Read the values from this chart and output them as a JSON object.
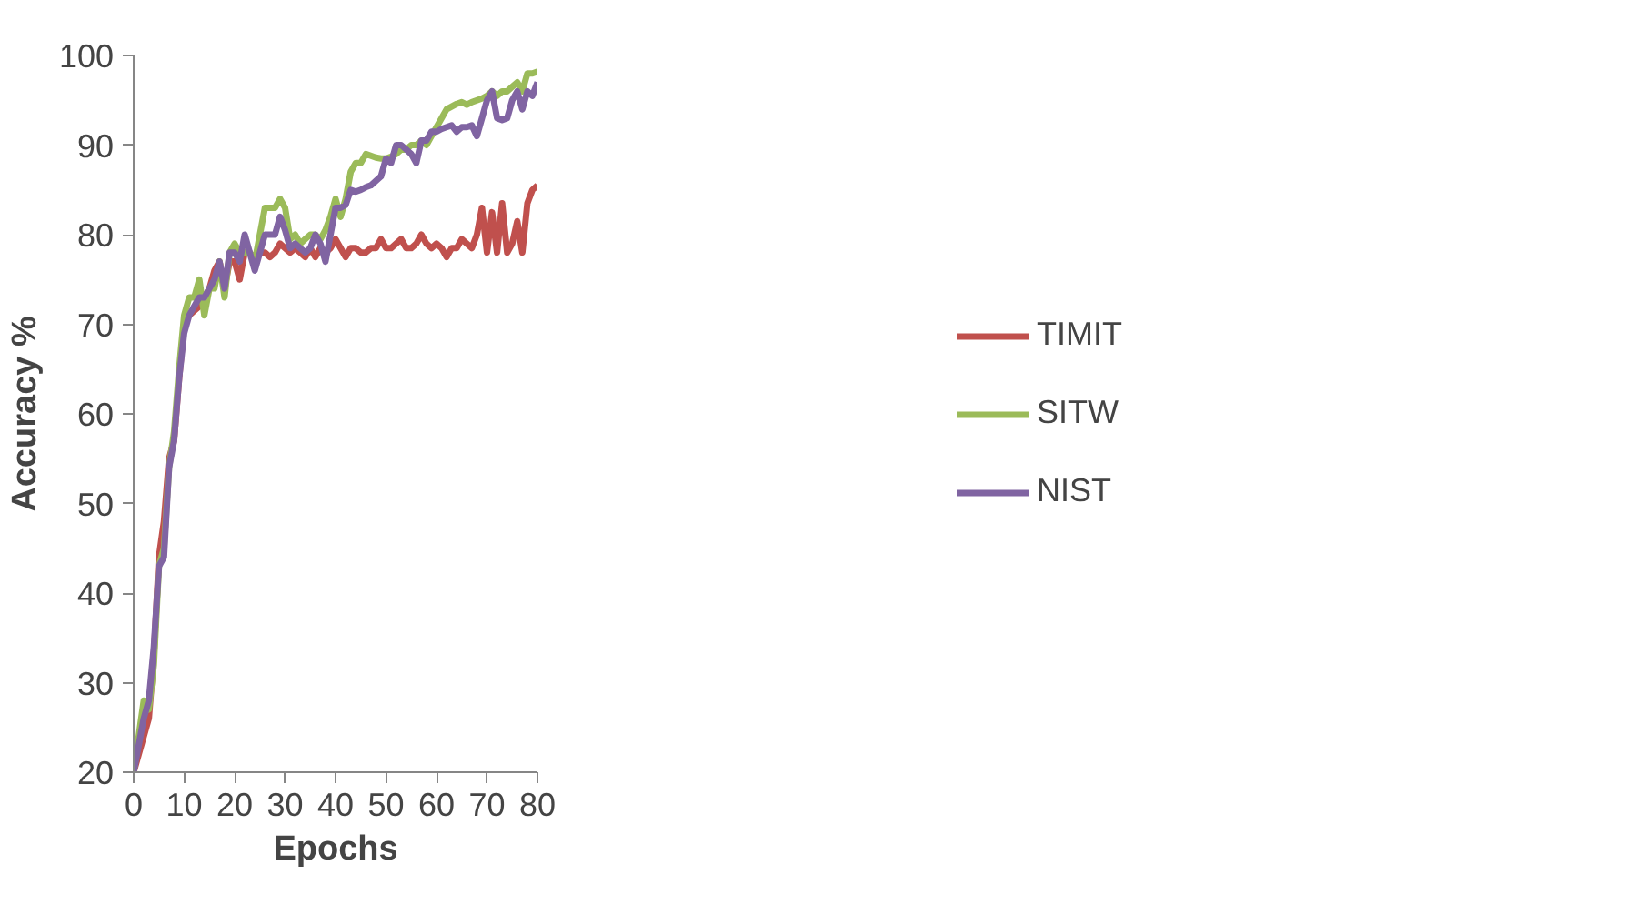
{
  "chart_data": {
    "type": "line",
    "xlabel": "Epochs",
    "ylabel": "Accuracy %",
    "x": [
      0,
      1,
      2,
      3,
      4,
      5,
      6,
      7,
      8,
      9,
      10,
      11,
      12,
      13,
      14,
      15,
      16,
      17,
      18,
      19,
      20,
      21,
      22,
      23,
      24,
      25,
      26,
      27,
      28,
      29,
      30,
      31,
      32,
      33,
      34,
      35,
      36,
      37,
      38,
      39,
      40,
      41,
      42,
      43,
      44,
      45,
      46,
      47,
      48,
      49,
      50,
      51,
      52,
      53,
      54,
      55,
      56,
      57,
      58,
      59,
      60,
      61,
      62,
      63,
      64,
      65,
      66,
      67,
      68,
      69,
      70,
      71,
      72,
      73,
      74,
      75,
      76,
      77,
      78,
      79,
      80
    ],
    "series": [
      {
        "name": "TIMIT",
        "color": "#c0504d",
        "values": [
          20,
          22,
          24,
          26,
          33,
          44,
          48,
          55,
          57,
          64,
          70,
          71,
          71.5,
          72,
          73,
          74,
          76,
          77,
          74,
          77,
          77,
          75,
          78,
          78,
          77,
          78,
          78,
          77.5,
          78,
          79,
          78.5,
          78,
          78.5,
          78,
          77.5,
          78.5,
          77.5,
          78.5,
          78,
          78.5,
          79.5,
          78.5,
          77.5,
          78.5,
          78.5,
          78,
          78,
          78.5,
          78.5,
          79.5,
          78.5,
          78.5,
          79,
          79.5,
          78.5,
          78.5,
          79,
          80,
          79,
          78.5,
          79,
          78.5,
          77.5,
          78.5,
          78.5,
          79.5,
          79,
          78.5,
          80,
          83,
          78,
          82.5,
          78,
          83.5,
          78,
          79,
          81.5,
          78,
          83.5,
          85,
          85.5
        ]
      },
      {
        "name": "SITW",
        "color": "#9bbb59",
        "values": [
          20,
          24,
          28,
          27,
          32,
          43,
          45,
          54,
          58,
          65,
          71,
          73,
          73,
          75,
          71,
          74,
          74,
          77,
          73,
          78,
          79,
          78,
          78,
          78,
          77,
          80,
          83,
          83,
          83,
          84,
          83,
          79.5,
          80,
          79,
          79.5,
          80,
          80,
          79.5,
          80.5,
          82,
          84,
          82,
          84,
          87,
          88,
          88,
          89,
          88.8,
          88.6,
          88.5,
          88.5,
          88.7,
          89,
          89.5,
          89.5,
          90,
          90,
          90.5,
          90,
          91,
          92,
          93,
          94,
          94.3,
          94.6,
          94.8,
          94.5,
          94.8,
          95,
          95.2,
          95.5,
          96,
          95.5,
          96,
          96,
          96.5,
          97,
          96,
          98,
          98,
          98.2
        ]
      },
      {
        "name": "NIST",
        "color": "#8064a2",
        "values": [
          20,
          23,
          26,
          28,
          34,
          43,
          44,
          54,
          57,
          64,
          69,
          71,
          72,
          73,
          73,
          74,
          75,
          77,
          74,
          78,
          78,
          77,
          80,
          78,
          76,
          78,
          80,
          80,
          80,
          82,
          80.5,
          78.5,
          79,
          78.5,
          78,
          78.5,
          80,
          79,
          77,
          80,
          83,
          83,
          83.3,
          85,
          84.8,
          85,
          85.3,
          85.5,
          86,
          86.5,
          88.5,
          88,
          90,
          90,
          89.5,
          89,
          88,
          90.5,
          90.5,
          91.5,
          91.5,
          91.8,
          92,
          92.2,
          91.5,
          92,
          92,
          92.2,
          91,
          93,
          95,
          96,
          93,
          92.8,
          93,
          95,
          96,
          94,
          96,
          95.5,
          97
        ]
      }
    ],
    "xlim": [
      0,
      80
    ],
    "xticks": [
      0,
      10,
      20,
      30,
      40,
      50,
      60,
      70,
      80
    ],
    "ylim": [
      20,
      100
    ],
    "yticks": [
      20,
      30,
      40,
      50,
      60,
      70,
      80,
      90,
      100
    ],
    "grid": false,
    "legend": "right",
    "marker": "none",
    "line_style": "solid"
  }
}
